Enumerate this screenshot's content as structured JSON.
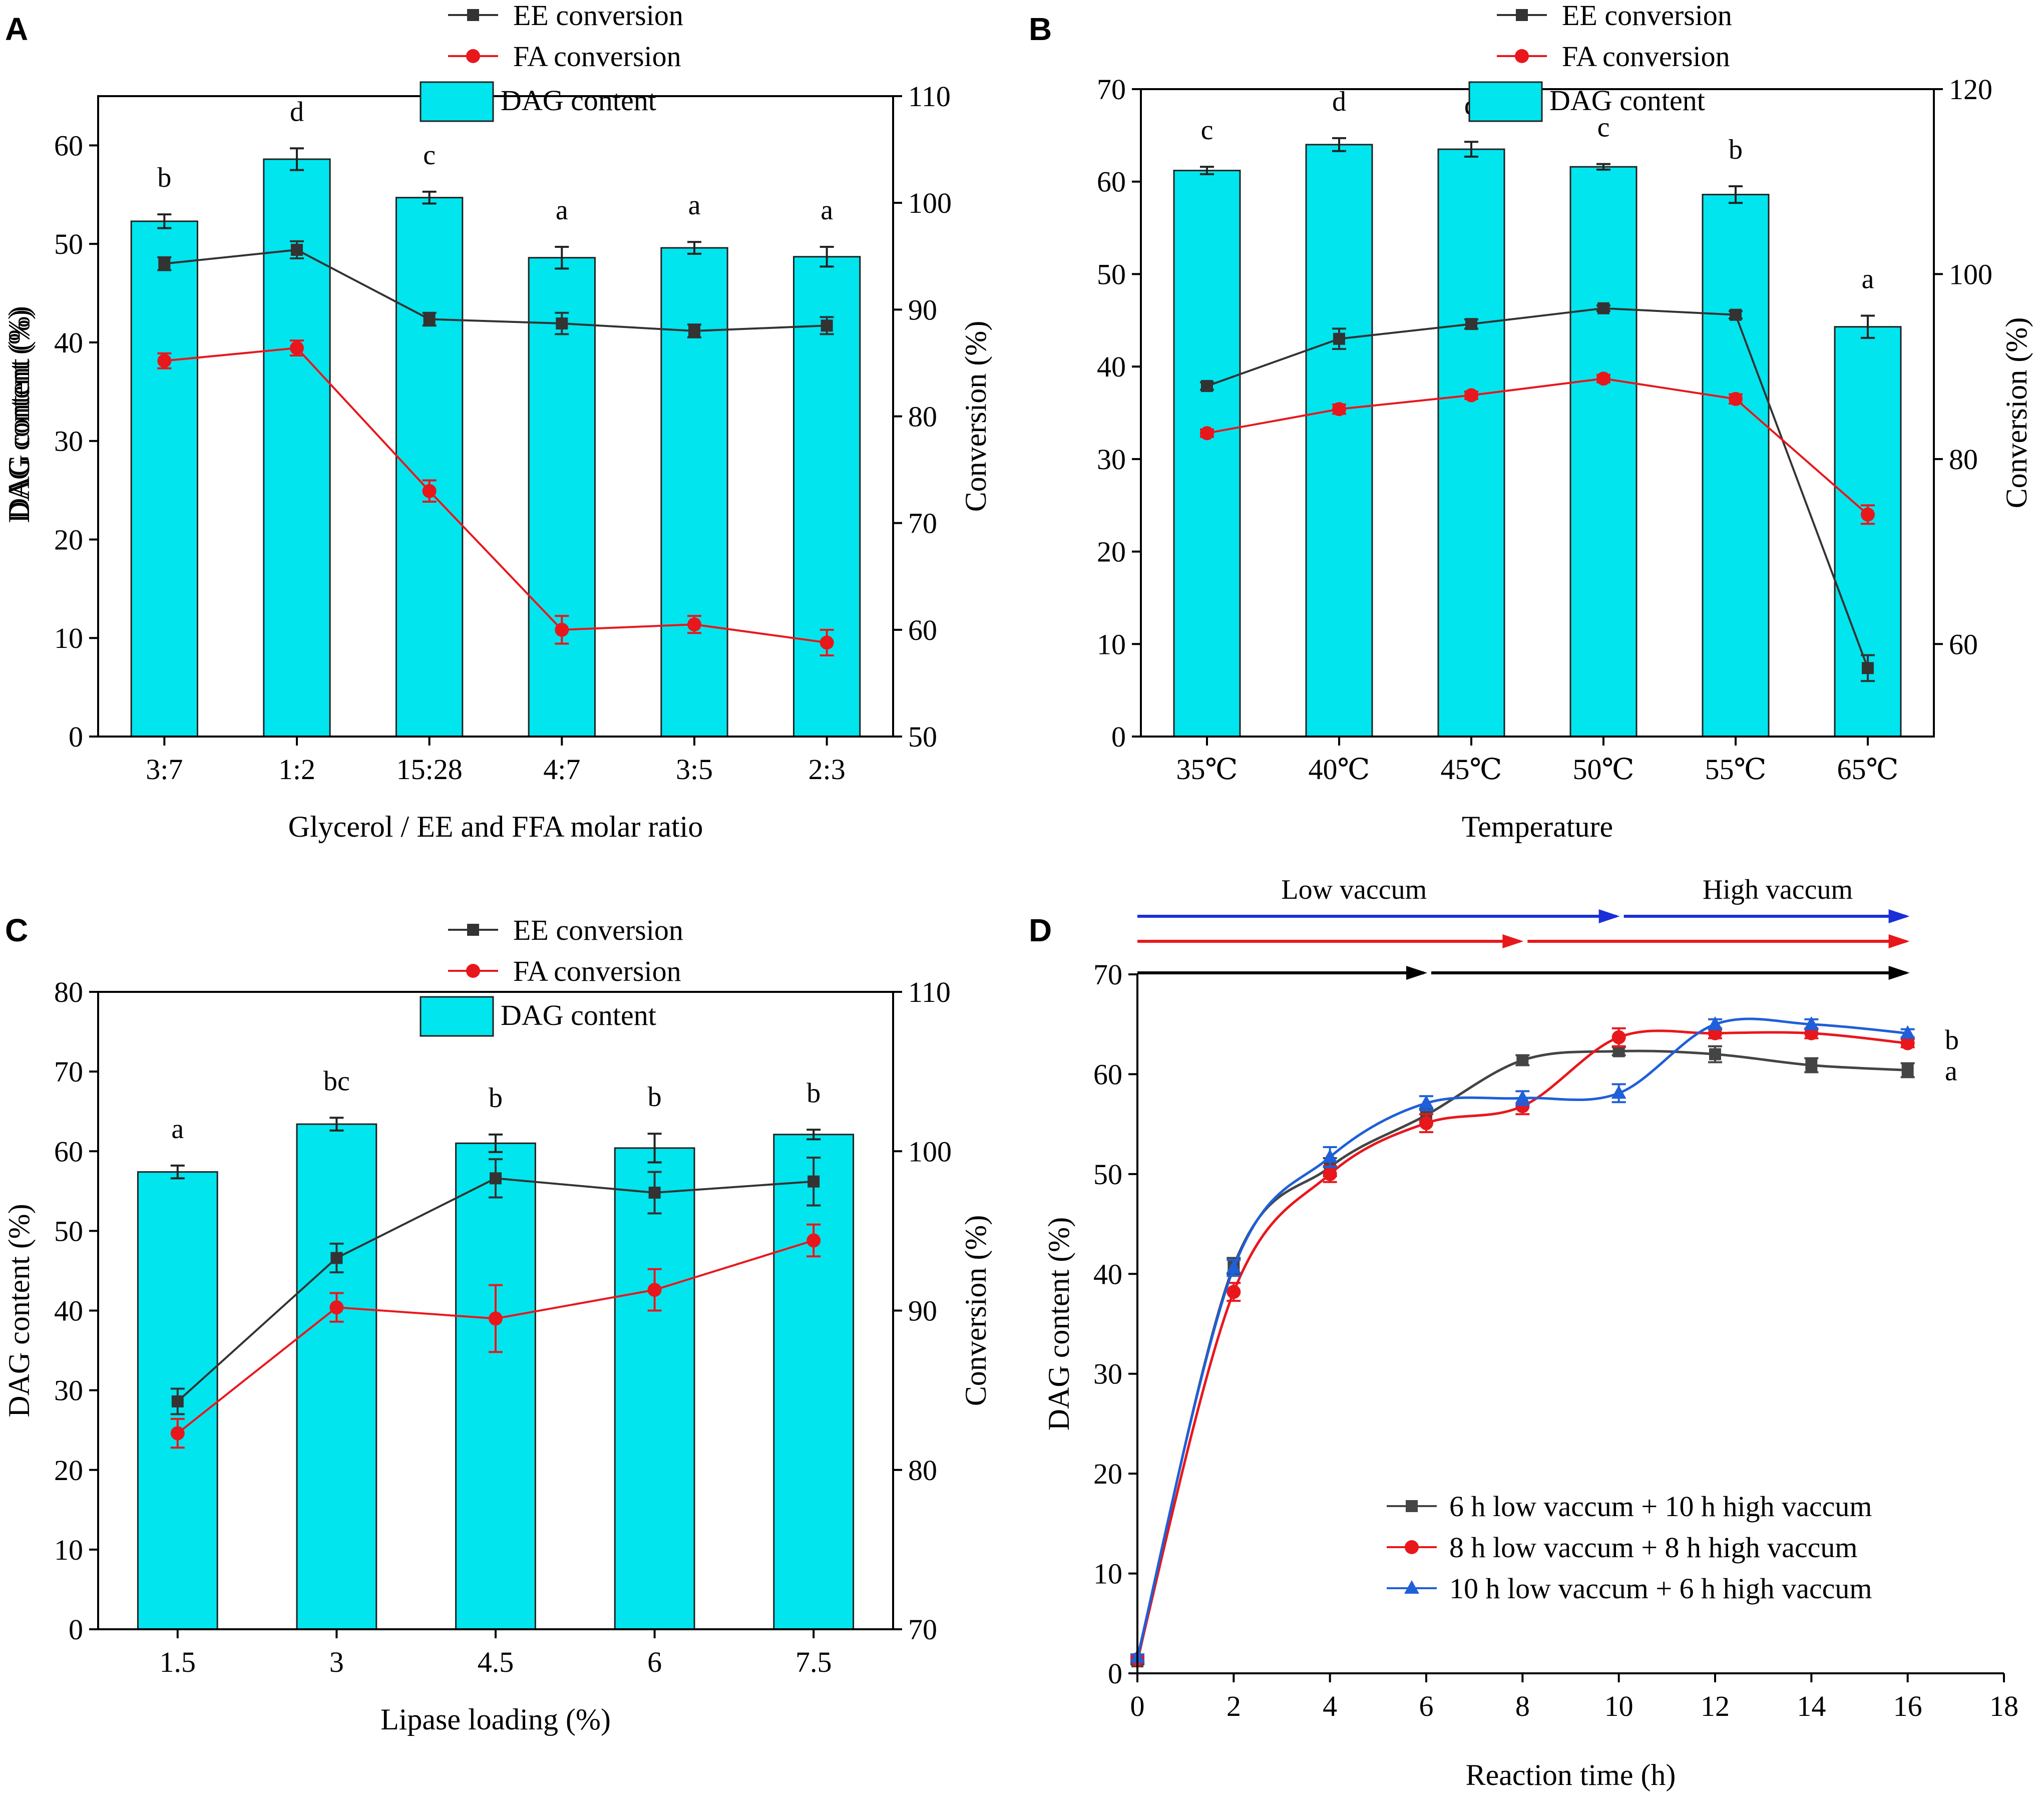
{
  "chart_data": [
    {
      "panel": "A",
      "type": "bar+line",
      "xlabel": "Glycerol / EE and FFA molar ratio",
      "ylabel": "DAG content (%)",
      "y2label": "Conversion (%)",
      "ylim": [
        0,
        65
      ],
      "yticks": [
        0,
        10,
        20,
        30,
        40,
        50,
        60
      ],
      "y2lim": [
        50,
        110
      ],
      "y2ticks": [
        50,
        60,
        70,
        80,
        90,
        100,
        110
      ],
      "categories": [
        "3:7",
        "1:2",
        "15:28",
        "4:7",
        "3:5",
        "2:3"
      ],
      "bars": {
        "name": "DAG content",
        "color": "#00e5ee",
        "values": [
          52.3,
          58.6,
          54.7,
          48.6,
          49.6,
          48.7
        ],
        "errors": [
          0.7,
          1.1,
          0.6,
          1.1,
          0.6,
          1.0
        ]
      },
      "letters": [
        "b",
        "d",
        "c",
        "a",
        "a",
        "a"
      ],
      "lines": [
        {
          "name": "EE conversion",
          "color": "#333333",
          "marker": "square",
          "values": [
            94.3,
            95.6,
            89.1,
            88.7,
            88.0,
            88.5
          ],
          "errors": [
            0.6,
            0.8,
            0.6,
            1.0,
            0.6,
            0.8
          ]
        },
        {
          "name": "FA conversion",
          "color": "#e8171c",
          "marker": "circle",
          "values": [
            85.2,
            86.4,
            73.0,
            60.0,
            60.5,
            58.8
          ],
          "errors": [
            0.7,
            0.7,
            1.0,
            1.3,
            0.8,
            1.2
          ]
        }
      ],
      "legend": [
        "EE conversion",
        "FA conversion",
        "DAG content"
      ]
    },
    {
      "panel": "B",
      "type": "bar+line",
      "xlabel": "Temperature",
      "ylabel": "DAG content (%)",
      "y2label": "Conversion (%)",
      "ylim": [
        0,
        70
      ],
      "yticks": [
        0,
        10,
        20,
        30,
        40,
        50,
        60,
        70
      ],
      "y2lim": [
        50,
        120
      ],
      "y2ticks": [
        60,
        80,
        100,
        120
      ],
      "categories": [
        "35℃",
        "40℃",
        "45℃",
        "50℃",
        "55℃",
        "65℃"
      ],
      "bars": {
        "name": "DAG content",
        "color": "#00e5ee",
        "values": [
          61.2,
          64.0,
          63.5,
          61.6,
          58.6,
          44.3
        ],
        "errors": [
          0.4,
          0.7,
          0.8,
          0.3,
          0.9,
          1.2
        ]
      },
      "letters": [
        "c",
        "d",
        "d",
        "c",
        "b",
        "a"
      ],
      "lines": [
        {
          "name": "EE conversion",
          "color": "#333333",
          "marker": "square",
          "values": [
            87.9,
            93.0,
            94.6,
            96.3,
            95.6,
            57.4
          ],
          "errors": [
            0.4,
            1.1,
            0.5,
            0.3,
            0.4,
            1.4
          ]
        },
        {
          "name": "FA conversion",
          "color": "#e8171c",
          "marker": "circle",
          "values": [
            82.8,
            85.4,
            86.9,
            88.7,
            86.5,
            74.0
          ],
          "errors": [
            0.4,
            0.5,
            0.4,
            0.4,
            0.5,
            1.0
          ]
        }
      ],
      "legend": [
        "EE conversion",
        "FA conversion",
        "DAG content"
      ]
    },
    {
      "panel": "C",
      "type": "bar+line",
      "xlabel": "Lipase loading (%)",
      "ylabel": "DAG content (%)",
      "y2label": "Conversion (%)",
      "ylim": [
        0,
        80
      ],
      "yticks": [
        0,
        10,
        20,
        30,
        40,
        50,
        60,
        70,
        80
      ],
      "y2lim": [
        70,
        110
      ],
      "y2ticks": [
        70,
        80,
        90,
        100,
        110
      ],
      "categories": [
        "1.5",
        "3",
        "4.5",
        "6",
        "7.5"
      ],
      "bars": {
        "name": "DAG content",
        "color": "#00e5ee",
        "values": [
          57.4,
          63.4,
          61.0,
          60.4,
          62.1
        ],
        "errors": [
          0.8,
          0.8,
          1.1,
          1.8,
          0.6
        ]
      },
      "letters": [
        "a",
        "bc",
        "b",
        "b",
        "b"
      ],
      "lines": [
        {
          "name": "EE conversion",
          "color": "#333333",
          "marker": "square",
          "values": [
            84.3,
            93.3,
            98.3,
            97.4,
            98.1
          ],
          "errors": [
            0.8,
            0.9,
            1.2,
            1.3,
            1.5
          ]
        },
        {
          "name": "FA conversion",
          "color": "#e8171c",
          "marker": "circle",
          "values": [
            82.3,
            90.2,
            89.5,
            91.3,
            94.4
          ],
          "errors": [
            0.9,
            0.9,
            2.1,
            1.3,
            1.0
          ]
        }
      ],
      "legend": [
        "EE conversion",
        "FA conversion",
        "DAG content"
      ]
    },
    {
      "panel": "D",
      "type": "line",
      "xlabel": "Reaction time (h)",
      "ylabel": "DAG content (%)",
      "xlim": [
        0,
        18
      ],
      "xticks": [
        0,
        2,
        4,
        6,
        8,
        10,
        12,
        14,
        16,
        18
      ],
      "ylim": [
        0,
        70
      ],
      "yticks": [
        0,
        10,
        20,
        30,
        40,
        50,
        60,
        70
      ],
      "series": [
        {
          "name": "6 h low vaccum + 10 h high vaccum",
          "color": "#444444",
          "marker": "square",
          "x": [
            0,
            2,
            4,
            6,
            8,
            10,
            12,
            14,
            16
          ],
          "values": [
            1.2,
            40.8,
            50.7,
            55.9,
            61.4,
            62.3,
            62.0,
            60.9,
            60.4
          ],
          "errors": [
            0.3,
            0.8,
            0.9,
            0.6,
            0.5,
            0.4,
            0.8,
            0.7,
            0.7
          ]
        },
        {
          "name": "8 h low vaccum + 8 h high vaccum",
          "color": "#e8171c",
          "marker": "circle",
          "x": [
            0,
            2,
            4,
            6,
            8,
            10,
            12,
            14,
            16
          ],
          "values": [
            1.4,
            38.2,
            50.0,
            55.1,
            56.8,
            63.7,
            64.1,
            64.1,
            63.1
          ],
          "errors": [
            0.3,
            0.9,
            0.8,
            0.9,
            0.8,
            0.9,
            0.5,
            0.5,
            0.4
          ]
        },
        {
          "name": "10 h low vaccum + 6 h high vaccum",
          "color": "#1f5fd8",
          "marker": "triangle",
          "x": [
            0,
            2,
            4,
            6,
            8,
            10,
            12,
            14,
            16
          ],
          "values": [
            1.6,
            40.6,
            51.7,
            57.1,
            57.6,
            58.1,
            65.0,
            65.0,
            64.1
          ],
          "errors": [
            0.3,
            0.8,
            1.0,
            0.7,
            0.7,
            0.9,
            0.5,
            0.5,
            0.4
          ]
        }
      ],
      "phase_labels": [
        "Low vaccum",
        "High vaccum"
      ],
      "phase_arrows": [
        {
          "color": "#1a2fd8",
          "switch_h": 10
        },
        {
          "color": "#e8171c",
          "switch_h": 8
        },
        {
          "color": "#000000",
          "switch_h": 6
        }
      ],
      "end_letters": [
        "b",
        "a"
      ]
    }
  ],
  "panel_labels": [
    "A",
    "B",
    "C",
    "D"
  ]
}
